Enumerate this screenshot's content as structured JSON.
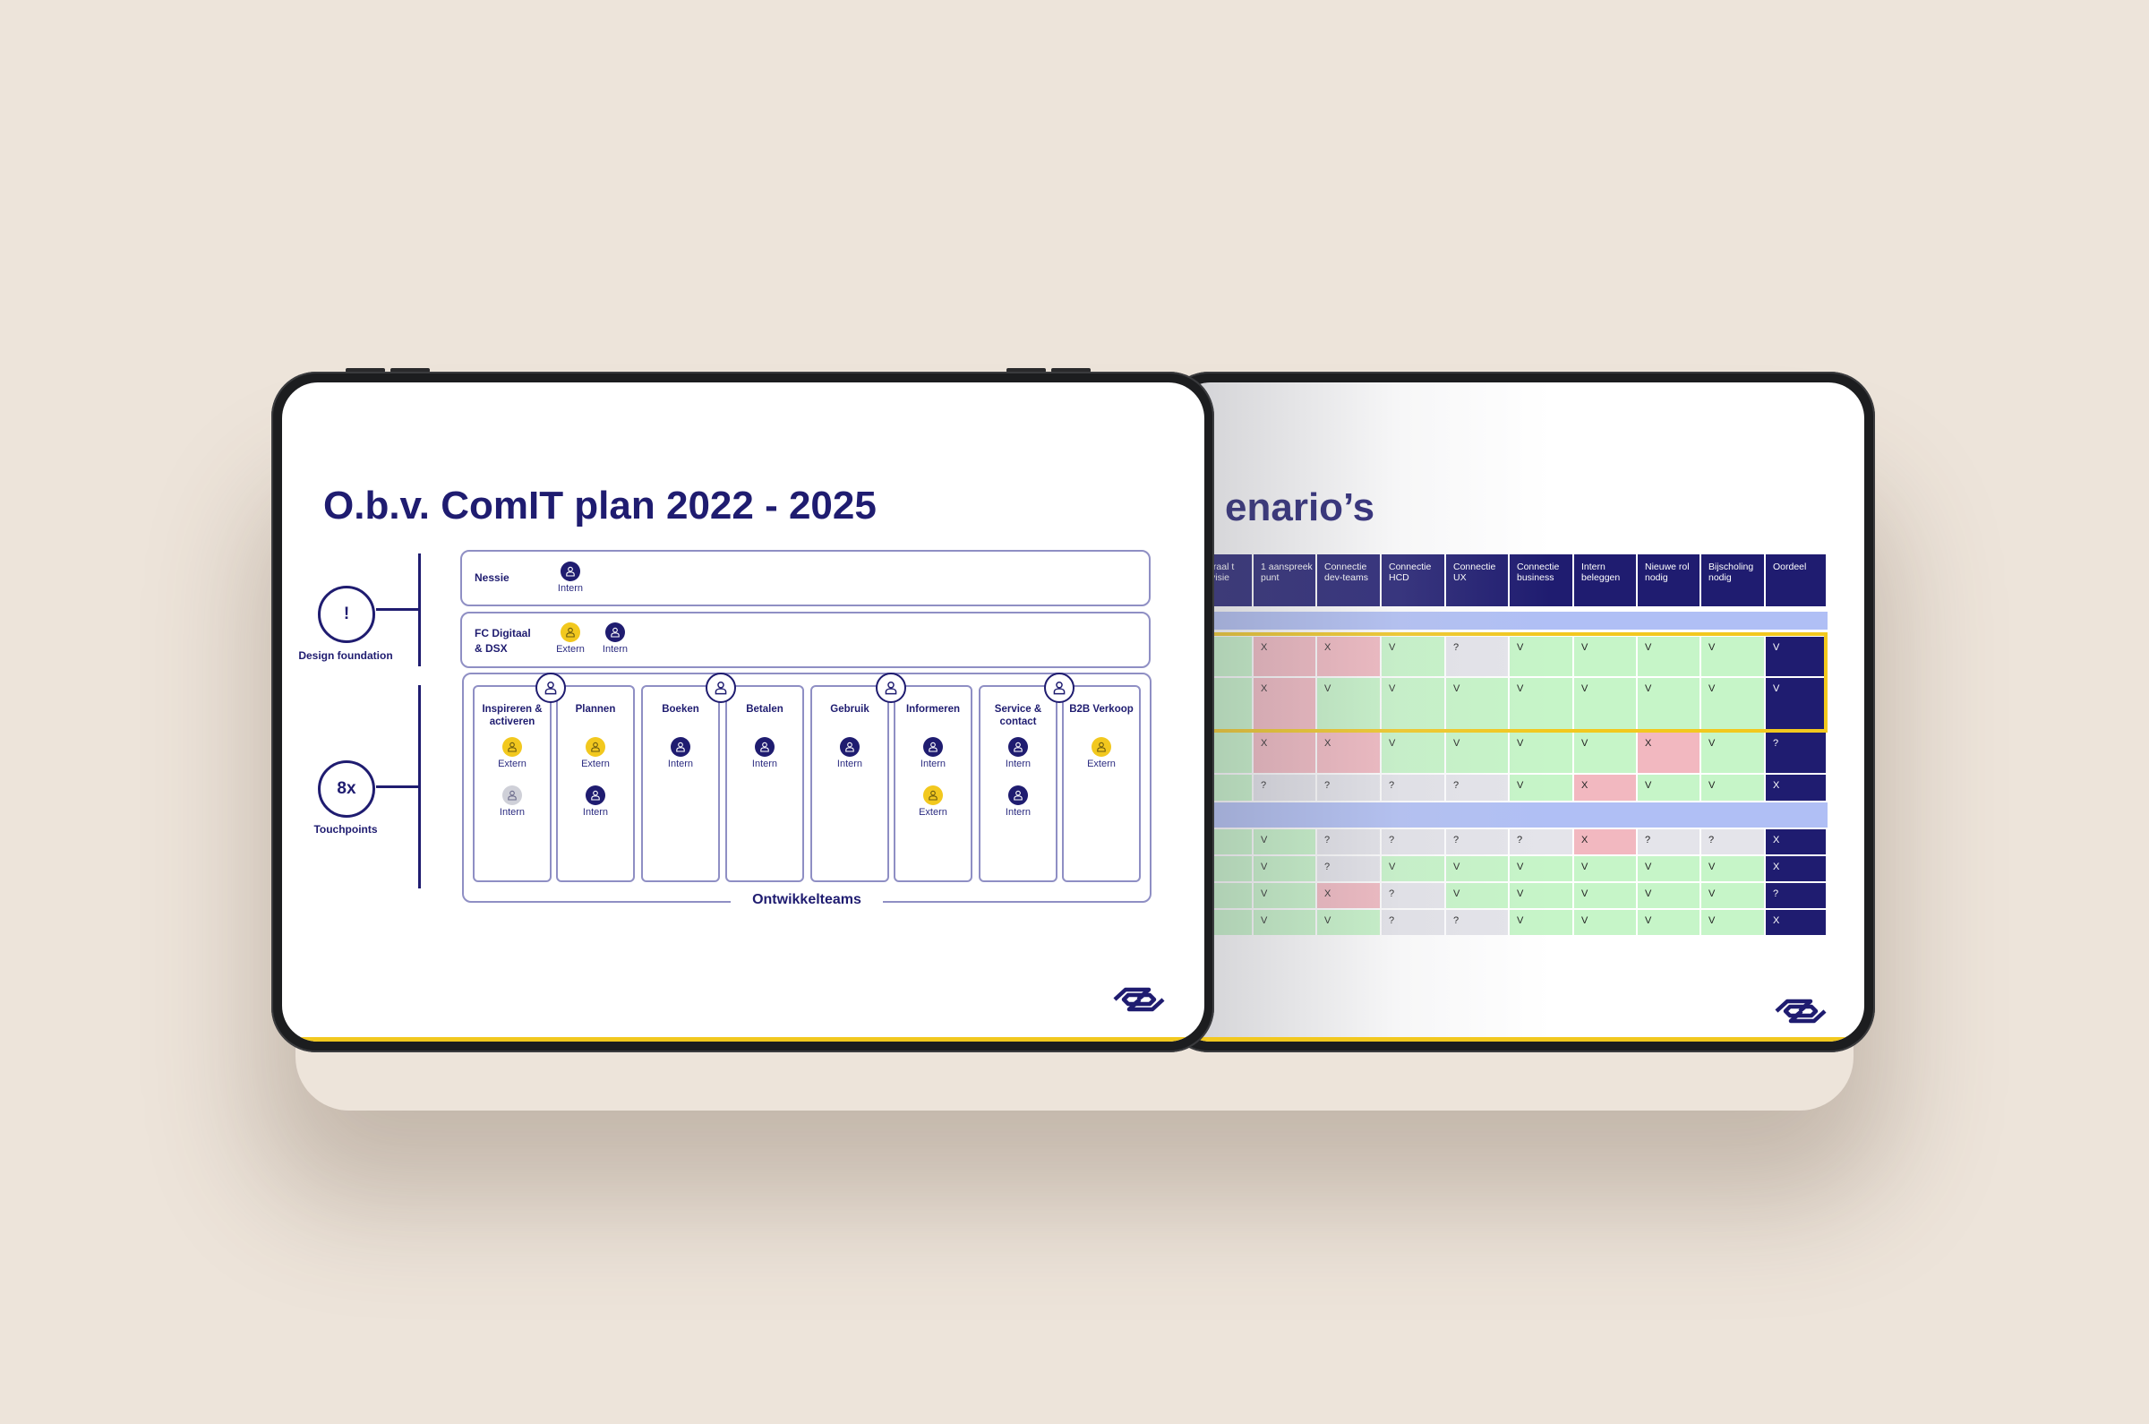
{
  "left_slide": {
    "title": "O.b.v. ComIT plan 2022 - 2025",
    "design_foundation": {
      "symbol": "!",
      "label": "Design foundation"
    },
    "touchpoints": {
      "symbol": "8x",
      "label": "Touchpoints"
    },
    "nessie": {
      "label": "Nessie",
      "people": [
        {
          "type": "intern",
          "label": "Intern"
        }
      ]
    },
    "fc_digitaal": {
      "label_line1": "FC Digitaal",
      "label_line2": "& DSX",
      "people": [
        {
          "type": "extern",
          "label": "Extern"
        },
        {
          "type": "intern",
          "label": "Intern"
        }
      ]
    },
    "teams_label": "Ontwikkelteams",
    "teams": [
      {
        "title": "Inspireren & activeren",
        "people": [
          {
            "type": "extern",
            "label": "Extern"
          },
          {
            "type": "inactive",
            "label": "Intern"
          }
        ]
      },
      {
        "title": "Plannen",
        "people": [
          {
            "type": "extern",
            "label": "Extern"
          },
          {
            "type": "intern",
            "label": "Intern"
          }
        ]
      },
      {
        "title": "Boeken",
        "people": [
          {
            "type": "intern",
            "label": "Intern"
          }
        ]
      },
      {
        "title": "Betalen",
        "people": [
          {
            "type": "intern",
            "label": "Intern"
          }
        ]
      },
      {
        "title": "Gebruik",
        "people": [
          {
            "type": "intern",
            "label": "Intern"
          }
        ]
      },
      {
        "title": "Informeren",
        "people": [
          {
            "type": "intern",
            "label": "Intern"
          },
          {
            "type": "extern",
            "label": "Extern"
          }
        ]
      },
      {
        "title": "Service & contact",
        "people": [
          {
            "type": "intern",
            "label": "Intern"
          },
          {
            "type": "intern",
            "label": "Intern"
          }
        ]
      },
      {
        "title": "B2B Verkoop",
        "people": [
          {
            "type": "extern",
            "label": "Extern"
          }
        ]
      }
    ]
  },
  "right_slide": {
    "title_visible": "enario’s",
    "headers": [
      "traal t visie",
      "1 aanspreek punt",
      "Connectie dev-teams",
      "Connectie HCD",
      "Connectie UX",
      "Connectie business",
      "Intern beleggen",
      "Nieuwe rol nodig",
      "Bijscholing nodig",
      "Oordeel"
    ],
    "group1_rows": [
      [
        "",
        "X",
        "X",
        "V",
        "?",
        "V",
        "V",
        "V",
        "V",
        "V"
      ],
      [
        "",
        "X",
        "V",
        "V",
        "V",
        "V",
        "V",
        "V",
        "V",
        "V"
      ],
      [
        "",
        "X",
        "X",
        "V",
        "V",
        "V",
        "V",
        "X",
        "V",
        "?"
      ],
      [
        "",
        "?",
        "?",
        "?",
        "?",
        "V",
        "X",
        "V",
        "V",
        "X"
      ]
    ],
    "group2_rows": [
      [
        "",
        "V",
        "?",
        "?",
        "?",
        "?",
        "X",
        "?",
        "?",
        "X"
      ],
      [
        "",
        "V",
        "?",
        "V",
        "V",
        "V",
        "V",
        "V",
        "V",
        "X"
      ],
      [
        "",
        "V",
        "X",
        "?",
        "V",
        "V",
        "V",
        "V",
        "V",
        "?"
      ],
      [
        "",
        "V",
        "V",
        "?",
        "?",
        "V",
        "V",
        "V",
        "V",
        "X"
      ]
    ],
    "highlighted_rows": [
      1,
      2
    ]
  },
  "colors": {
    "brand_blue": "#1f1c70",
    "brand_yellow": "#f2c81e",
    "positive": "#c6f5c8",
    "negative": "#f2b8c0",
    "unknown": "#e4e4ea",
    "group_band": "#b0bff5",
    "background": "#ede4da"
  },
  "icons": {
    "person": "person-icon",
    "logo": "ns-logo"
  }
}
